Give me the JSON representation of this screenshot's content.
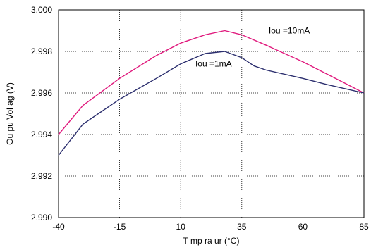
{
  "chart_data": {
    "type": "line",
    "xlabel": "T mp ra ur  (°C)",
    "ylabel": "Ou pu  Vol ag   (V)",
    "xlim": [
      -40,
      85
    ],
    "ylim": [
      2.99,
      3.0
    ],
    "x_ticks": [
      -40,
      -15,
      10,
      35,
      60,
      85
    ],
    "x_tick_labels": [
      "-40",
      "-15",
      "10",
      "35",
      "60",
      "85"
    ],
    "y_ticks": [
      2.99,
      2.992,
      2.994,
      2.996,
      2.998,
      3.0
    ],
    "y_tick_labels": [
      "2.990",
      "2.992",
      "2.994",
      "2.996",
      "2.998",
      "3.000"
    ],
    "grid": true,
    "legend": "none",
    "series": [
      {
        "name": "Iou =10mA",
        "color": "#e0197d",
        "x": [
          -40,
          -30,
          -15,
          0,
          10,
          20,
          28,
          35,
          45,
          60,
          70,
          85
        ],
        "values": [
          2.994,
          2.9954,
          2.9967,
          2.9978,
          2.9984,
          2.9988,
          2.999,
          2.9988,
          2.9983,
          2.9975,
          2.9969,
          2.996
        ]
      },
      {
        "name": "Iou =1mA",
        "color": "#2b2e6e",
        "x": [
          -40,
          -30,
          -15,
          0,
          10,
          20,
          28,
          35,
          40,
          45,
          60,
          70,
          85
        ],
        "values": [
          2.993,
          2.9945,
          2.9957,
          2.9967,
          2.9974,
          2.9979,
          2.998,
          2.9977,
          2.9973,
          2.9971,
          2.9967,
          2.9964,
          2.996
        ]
      }
    ],
    "annotations": [
      {
        "text": "Iou =10mA",
        "x": 46,
        "y": 2.999
      },
      {
        "text": "Iou =1mA",
        "x": 16,
        "y": 2.9974
      }
    ]
  }
}
